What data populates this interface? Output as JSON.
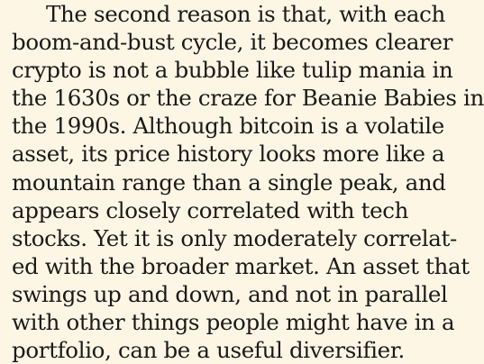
{
  "article": {
    "paragraph_lines": [
      "The second reason is that, with each",
      "boom-and-bust cycle, it becomes clearer",
      "crypto is not a bubble like tulip mania in",
      "the 1630s or the craze for Beanie Babies in",
      "the 1990s. Although bitcoin is a volatile",
      "asset, its price history looks more like a",
      "mountain range than a single peak, and",
      "appears closely correlated with tech",
      "stocks. Yet it is only moderately correlat-",
      "ed with the broader market. An asset that",
      "swings up and down, and not in parallel",
      "with other things people might have in a",
      "portfolio, can be a useful diversifier."
    ]
  },
  "colors": {
    "background": "#fdf6e4",
    "text": "#1a1a1a"
  }
}
